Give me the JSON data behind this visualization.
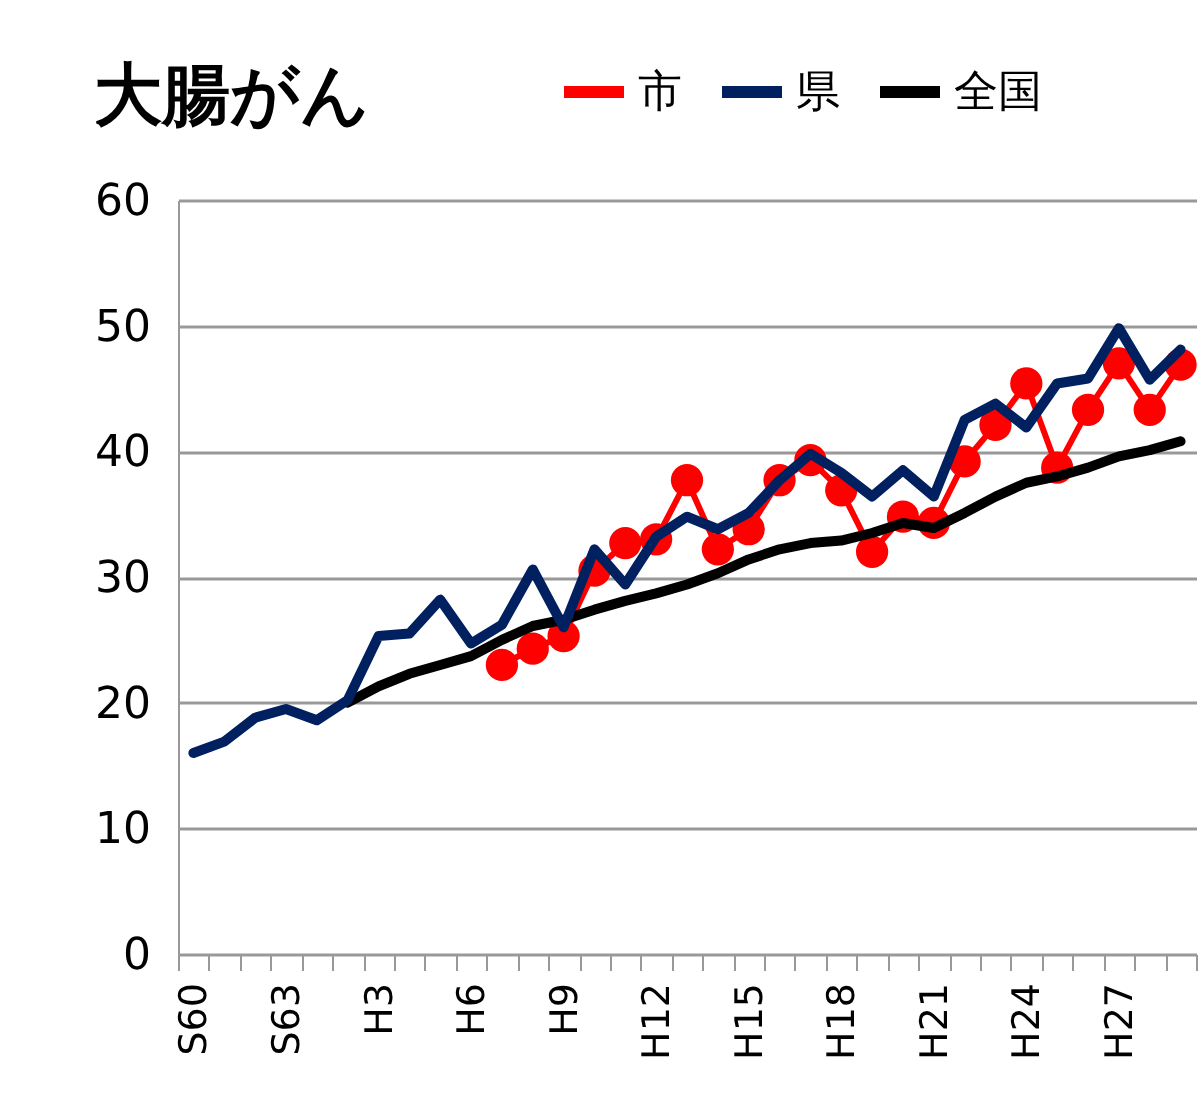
{
  "chart_data": {
    "type": "line",
    "title": "大腸がん",
    "categories": [
      "S60",
      null,
      null,
      "S63",
      null,
      null,
      "H3",
      null,
      null,
      "H6",
      null,
      null,
      "H9",
      null,
      null,
      "H12",
      null,
      null,
      "H15",
      null,
      null,
      "H18",
      null,
      null,
      "H21",
      null,
      null,
      "H24",
      null,
      null,
      "H27",
      null,
      null
    ],
    "series": [
      {
        "name": "市",
        "color": "#ff0000",
        "marker": "circle",
        "values": [
          null,
          null,
          null,
          null,
          null,
          null,
          null,
          null,
          null,
          null,
          23.0,
          24.3,
          25.3,
          30.5,
          32.7,
          33.0,
          37.7,
          32.2,
          33.8,
          37.7,
          39.3,
          36.9,
          32.0,
          34.8,
          34.3,
          39.2,
          42.1,
          45.4,
          38.7,
          43.3,
          47.0,
          43.3,
          46.9
        ]
      },
      {
        "name": "県",
        "color": "#002060",
        "values": [
          16.0,
          16.9,
          18.8,
          19.5,
          18.6,
          20.2,
          25.3,
          25.5,
          28.2,
          24.7,
          26.2,
          30.6,
          26.0,
          32.2,
          29.4,
          33.2,
          34.8,
          33.8,
          35.1,
          37.7,
          39.8,
          38.3,
          36.4,
          38.5,
          36.4,
          42.5,
          43.8,
          41.9,
          45.4,
          45.8,
          49.8,
          45.7,
          48.1
        ]
      },
      {
        "name": "全国",
        "color": "#000000",
        "values": [
          null,
          null,
          null,
          null,
          null,
          20.0,
          21.3,
          22.3,
          23.0,
          23.7,
          25.0,
          26.1,
          26.6,
          27.4,
          28.1,
          28.7,
          29.4,
          30.3,
          31.4,
          32.2,
          32.7,
          32.9,
          33.5,
          34.3,
          33.9,
          35.1,
          36.4,
          37.5,
          38.0,
          38.7,
          39.6,
          40.1,
          40.8
        ]
      }
    ],
    "ylim": [
      0,
      60
    ],
    "yticks": [
      0,
      10,
      20,
      30,
      40,
      50,
      60
    ],
    "grid": "y",
    "legend": "top"
  }
}
